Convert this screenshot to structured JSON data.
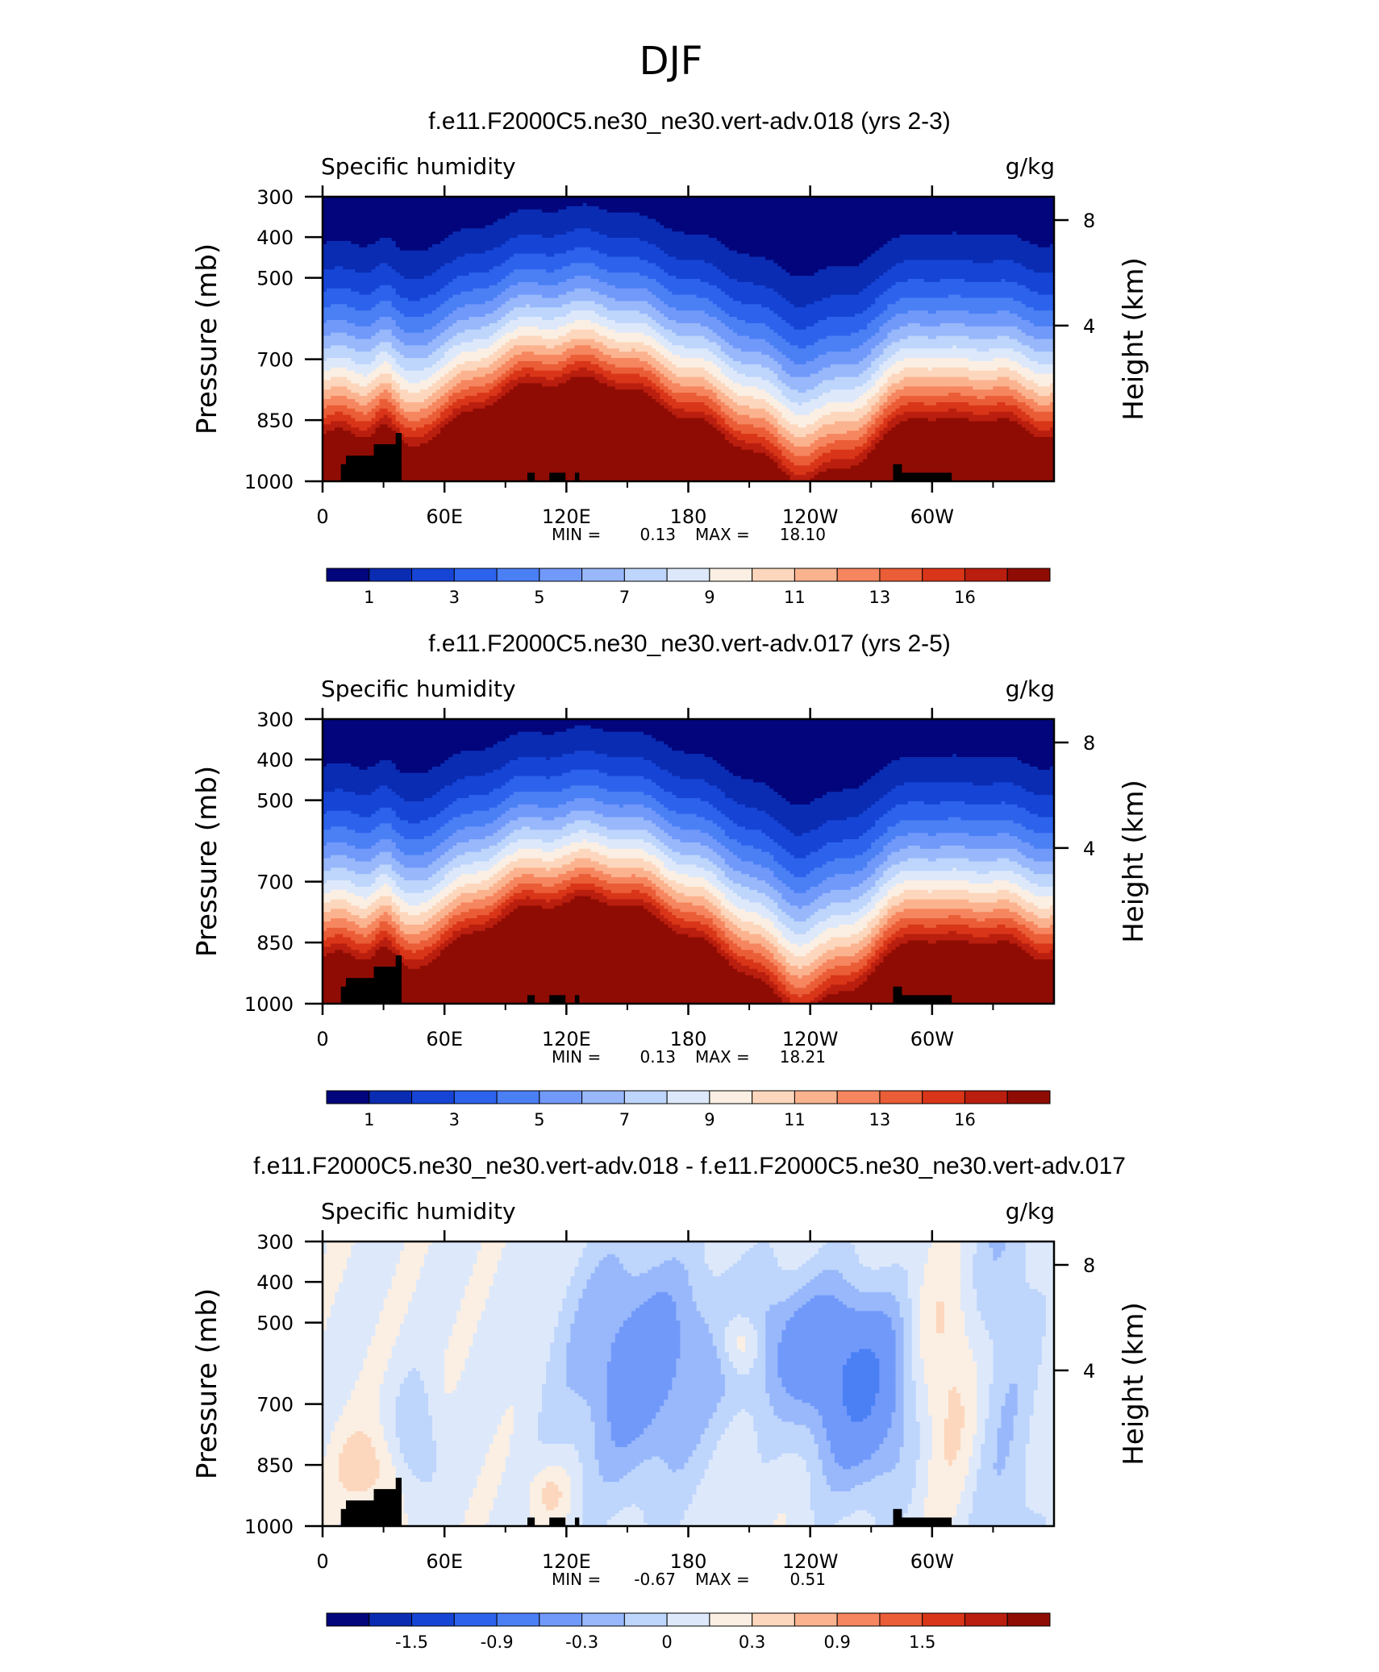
{
  "figure": {
    "title": "DJF",
    "palette": [
      "#02057b",
      "#0a2cb2",
      "#1645d6",
      "#2d63ec",
      "#4b80f5",
      "#7199fa",
      "#98b8fb",
      "#bed5fc",
      "#dde9fb",
      "#fbefe3",
      "#fdd7bd",
      "#fbb38f",
      "#f6865f",
      "#ea5d36",
      "#d93518",
      "#b91e0e",
      "#8f0c04"
    ],
    "terrain_color": "#000000"
  },
  "chart_data": [
    {
      "type": "contour",
      "title": "f.e11.F2000C5.ne30_ne30.vert-adv.018 (yrs 2-3)",
      "left_label": "Specific humidity",
      "right_label": "g/kg",
      "ylabel": "Pressure (mb)",
      "ylabel_right": "Height (km)",
      "x_ticks": [
        "0",
        "60E",
        "120E",
        "180",
        "120W",
        "60W"
      ],
      "y_ticks": [
        "300",
        "400",
        "500",
        "700",
        "850",
        "1000"
      ],
      "y_ticks_right": [
        "8",
        "4"
      ],
      "stats": {
        "min_label": "MIN =",
        "min": "0.13",
        "max_label": "MAX =",
        "max": "18.10"
      },
      "colorbar_labels": [
        "1",
        "3",
        "5",
        "7",
        "9",
        "11",
        "13",
        "16"
      ],
      "field": "plot1"
    },
    {
      "type": "contour",
      "title": "f.e11.F2000C5.ne30_ne30.vert-adv.017 (yrs 2-5)",
      "left_label": "Specific humidity",
      "right_label": "g/kg",
      "ylabel": "Pressure (mb)",
      "ylabel_right": "Height (km)",
      "x_ticks": [
        "0",
        "60E",
        "120E",
        "180",
        "120W",
        "60W"
      ],
      "y_ticks": [
        "300",
        "400",
        "500",
        "700",
        "850",
        "1000"
      ],
      "y_ticks_right": [
        "8",
        "4"
      ],
      "stats": {
        "min_label": "MIN =",
        "min": "0.13",
        "max_label": "MAX =",
        "max": "18.21"
      },
      "colorbar_labels": [
        "1",
        "3",
        "5",
        "7",
        "9",
        "11",
        "13",
        "16"
      ],
      "field": "plot2"
    },
    {
      "type": "contour",
      "title": "f.e11.F2000C5.ne30_ne30.vert-adv.018 - f.e11.F2000C5.ne30_ne30.vert-adv.017",
      "left_label": "Specific humidity",
      "right_label": "g/kg",
      "ylabel": "Pressure (mb)",
      "ylabel_right": "Height (km)",
      "x_ticks": [
        "0",
        "60E",
        "120E",
        "180",
        "120W",
        "60W"
      ],
      "y_ticks": [
        "300",
        "400",
        "500",
        "700",
        "850",
        "1000"
      ],
      "y_ticks_right": [
        "8",
        "4"
      ],
      "stats": {
        "min_label": "MIN =",
        "min": "-0.67",
        "max_label": "MAX =",
        "max": "0.51"
      },
      "colorbar_labels": [
        "-1.5",
        "-0.9",
        "-0.3",
        "0",
        "0.3",
        "0.9",
        "1.5"
      ],
      "field": "diff"
    }
  ]
}
